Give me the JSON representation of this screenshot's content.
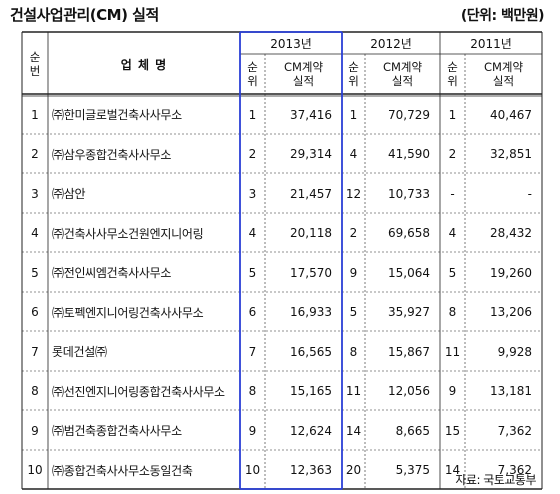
{
  "title": "건설사업관리(CM) 실적",
  "unit": "(단위: 백만원)",
  "source": "자료: 국토교통부",
  "headers": {
    "rank": [
      "순",
      "번"
    ],
    "company": "업 체 명",
    "years": [
      "2013년",
      "2012년",
      "2011년"
    ],
    "sub_rank": [
      "순",
      "위"
    ],
    "sub_amount": [
      "CM계약",
      "실적"
    ]
  },
  "rows": [
    {
      "no": "1",
      "company": "㈜한미글로벌건축사사무소",
      "r2013": "1",
      "a2013": "37,416",
      "r2012": "1",
      "a2012": "70,729",
      "r2011": "1",
      "a2011": "40,467"
    },
    {
      "no": "2",
      "company": "㈜삼우종합건축사사무소",
      "r2013": "2",
      "a2013": "29,314",
      "r2012": "4",
      "a2012": "41,590",
      "r2011": "2",
      "a2011": "32,851"
    },
    {
      "no": "3",
      "company": "㈜삼안",
      "r2013": "3",
      "a2013": "21,457",
      "r2012": "12",
      "a2012": "10,733",
      "r2011": "-",
      "a2011": "-"
    },
    {
      "no": "4",
      "company": "㈜건축사사무소건원엔지니어링",
      "r2013": "4",
      "a2013": "20,118",
      "r2012": "2",
      "a2012": "69,658",
      "r2011": "4",
      "a2011": "28,432"
    },
    {
      "no": "5",
      "company": "㈜전인씨엠건축사사무소",
      "r2013": "5",
      "a2013": "17,570",
      "r2012": "9",
      "a2012": "15,064",
      "r2011": "5",
      "a2011": "19,260"
    },
    {
      "no": "6",
      "company": "㈜토펙엔지니어링건축사사무소",
      "r2013": "6",
      "a2013": "16,933",
      "r2012": "5",
      "a2012": "35,927",
      "r2011": "8",
      "a2011": "13,206"
    },
    {
      "no": "7",
      "company": "롯데건설㈜",
      "r2013": "7",
      "a2013": "16,565",
      "r2012": "8",
      "a2012": "15,867",
      "r2011": "11",
      "a2011": "9,928"
    },
    {
      "no": "8",
      "company": "㈜선진엔지니어링종합건축사사무소",
      "r2013": "8",
      "a2013": "15,165",
      "r2012": "11",
      "a2012": "12,056",
      "r2011": "9",
      "a2011": "13,181"
    },
    {
      "no": "9",
      "company": "㈜범건축종합건축사사무소",
      "r2013": "9",
      "a2013": "12,624",
      "r2012": "14",
      "a2012": "8,665",
      "r2011": "15",
      "a2011": "7,362"
    },
    {
      "no": "10",
      "company": "㈜종합건축사사무소동일건축",
      "r2013": "10",
      "a2013": "12,363",
      "r2012": "20",
      "a2012": "5,375",
      "r2011": "14",
      "a2011": "7,362"
    }
  ],
  "colors": {
    "border": "#222222",
    "highlight": "#2a3fd6"
  }
}
